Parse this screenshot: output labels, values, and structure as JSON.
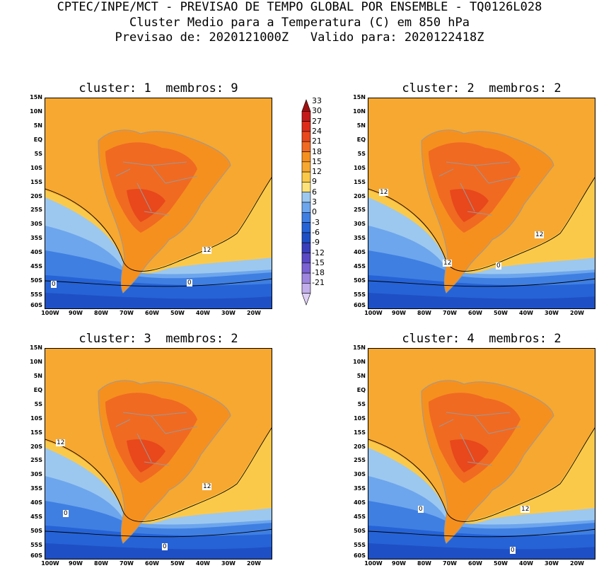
{
  "header": {
    "line1": "CPTEC/INPE/MCT - PREVISAO DE TEMPO GLOBAL POR ENSEMBLE - TQ0126L028",
    "line2": "Cluster Medio para a Temperatura (C) em 850 hPa",
    "line3": "Previsao de: 2020121000Z   Valido para: 2020122418Z"
  },
  "panels": [
    {
      "title": "cluster: 1  membros: 9",
      "contour_labels": [
        "0",
        "0",
        "12"
      ]
    },
    {
      "title": "cluster: 2  membros: 2",
      "contour_labels": [
        "12",
        "12",
        "12",
        "0"
      ]
    },
    {
      "title": "cluster: 3  membros: 2",
      "contour_labels": [
        "12",
        "12",
        "0",
        "0"
      ]
    },
    {
      "title": "cluster: 4  membros: 2",
      "contour_labels": [
        "0",
        "12",
        "0"
      ]
    }
  ],
  "lat_labels": [
    "15N",
    "10N",
    "5N",
    "EQ",
    "5S",
    "10S",
    "15S",
    "20S",
    "25S",
    "30S",
    "35S",
    "40S",
    "45S",
    "50S",
    "55S",
    "60S"
  ],
  "lon_labels": [
    "100W",
    "90W",
    "80W",
    "70W",
    "60W",
    "50W",
    "40W",
    "30W",
    "20W"
  ],
  "colorbar": {
    "labels": [
      "33",
      "30",
      "27",
      "24",
      "21",
      "18",
      "15",
      "12",
      "9",
      "6",
      "3",
      "0",
      "-3",
      "-6",
      "-9",
      "-12",
      "-15",
      "-18",
      "-21"
    ],
    "colors": [
      "#9e1010",
      "#c41a1a",
      "#dd2d1a",
      "#e8481b",
      "#f06a22",
      "#f5901f",
      "#f7a830",
      "#fbc94a",
      "#fde27a",
      "#9cc8f0",
      "#6da6ec",
      "#3f7fe2",
      "#2663d6",
      "#1f4fc4",
      "#3a3eba",
      "#5a48c4",
      "#7a62d2",
      "#9e86de",
      "#c1aeea",
      "#ddd0f4"
    ]
  }
}
